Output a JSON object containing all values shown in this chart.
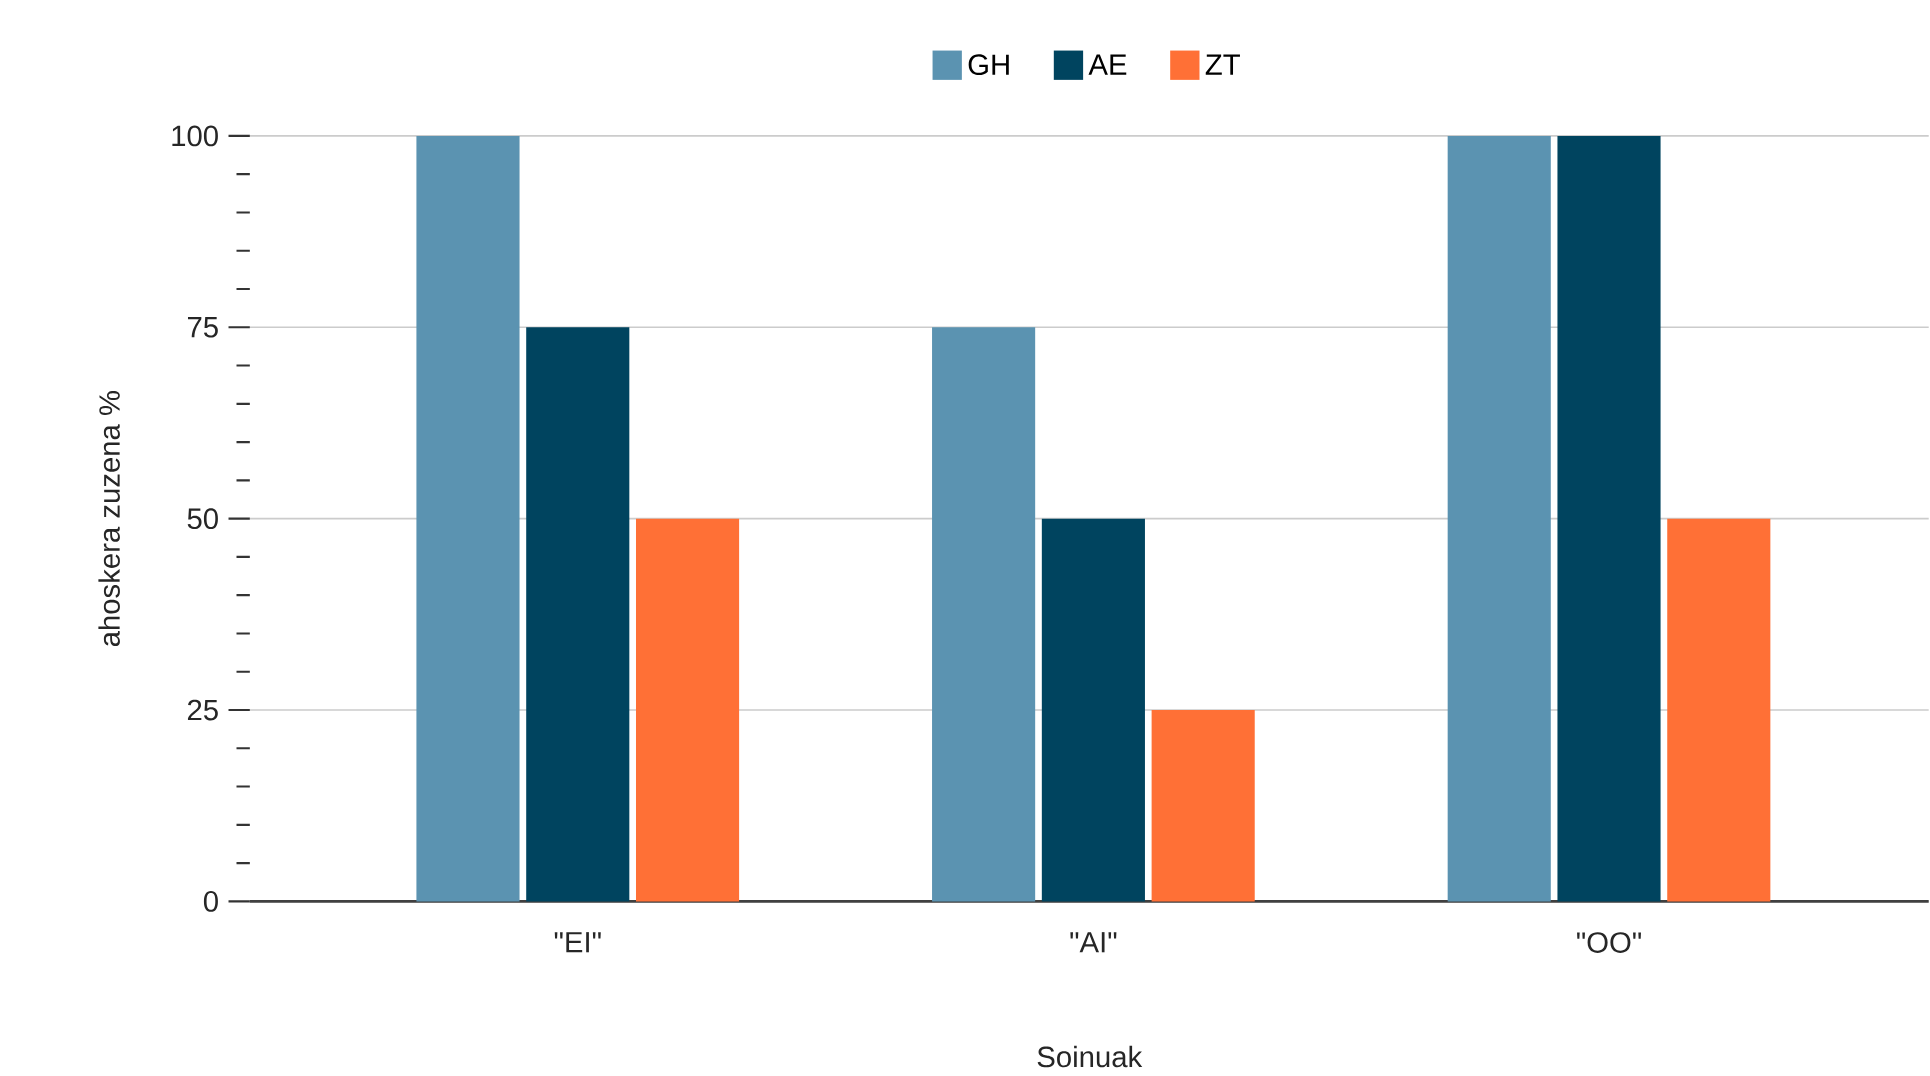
{
  "chart_data": {
    "type": "bar",
    "categories": [
      "\"EI\"",
      "\"AI\"",
      "\"OO\""
    ],
    "xlabel": "Soinuak",
    "ylabel": "ahoskera zuzena %",
    "series": [
      {
        "name": "GH",
        "color": "#5b93b1",
        "values": [
          100,
          75,
          100
        ]
      },
      {
        "name": "AE",
        "color": "#00445f",
        "values": [
          75,
          50,
          100
        ]
      },
      {
        "name": "ZT",
        "color": "#ff7036",
        "values": [
          50,
          25,
          50
        ]
      }
    ],
    "ylim": [
      0,
      100
    ],
    "yticks": [
      0,
      25,
      50,
      75,
      100
    ],
    "grid": "y",
    "legend": "top"
  }
}
